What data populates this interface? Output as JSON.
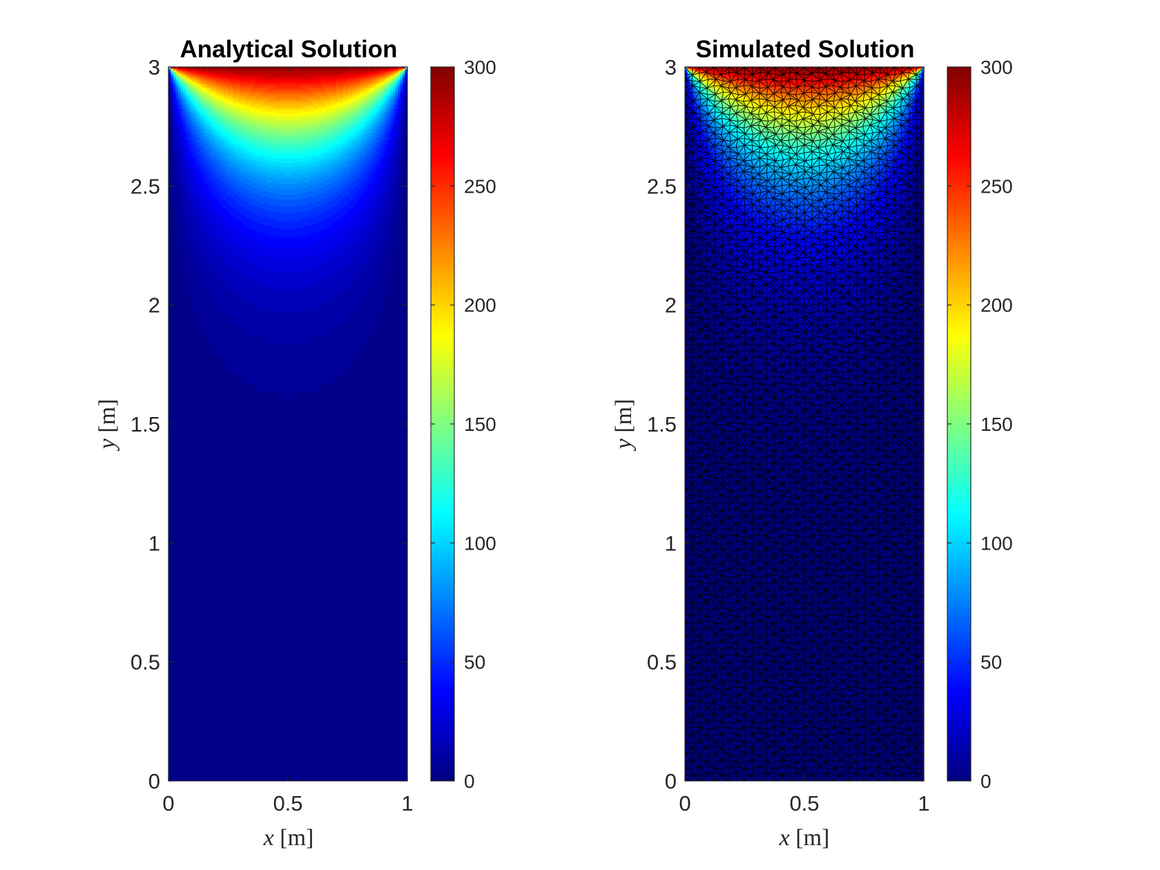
{
  "chart_data": [
    {
      "type": "heatmap",
      "title": "Analytical Solution",
      "xlabel_var": "x",
      "xlabel_unit": "[m]",
      "ylabel_var": "y",
      "ylabel_unit": "[m]",
      "xlim": [
        0,
        1
      ],
      "ylim": [
        0,
        3
      ],
      "xticks": [
        "0",
        "0.5",
        "1"
      ],
      "yticks": [
        "0",
        "0.5",
        "1",
        "1.5",
        "2",
        "2.5",
        "3"
      ],
      "colorbar": {
        "clim": [
          0,
          300
        ],
        "ticks": [
          "0",
          "50",
          "100",
          "150",
          "200",
          "250",
          "300"
        ],
        "colormap": "jet"
      },
      "field": {
        "top_boundary_value": 300,
        "other_boundaries_value": 0,
        "levels": 60,
        "mesh": false
      },
      "grid": false
    },
    {
      "type": "heatmap",
      "title": "Simulated Solution",
      "xlabel_var": "x",
      "xlabel_unit": "[m]",
      "ylabel_var": "y",
      "ylabel_unit": "[m]",
      "xlim": [
        0,
        1
      ],
      "ylim": [
        0,
        3
      ],
      "xticks": [
        "0",
        "0.5",
        "1"
      ],
      "yticks": [
        "0",
        "0.5",
        "1",
        "1.5",
        "2",
        "2.5",
        "3"
      ],
      "colorbar": {
        "clim": [
          0,
          300
        ],
        "ticks": [
          "0",
          "50",
          "100",
          "150",
          "200",
          "250",
          "300"
        ],
        "colormap": "jet"
      },
      "field": {
        "top_boundary_value": 300,
        "other_boundaries_value": 0,
        "levels": 0,
        "mesh": true,
        "mesh_color": "#000000"
      },
      "grid": false
    }
  ]
}
